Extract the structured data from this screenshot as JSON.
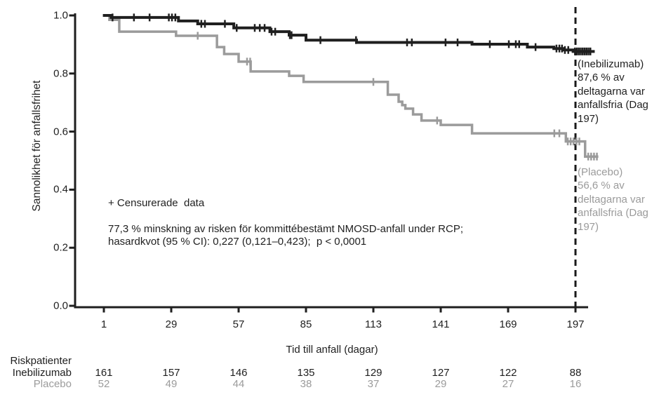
{
  "chart_data": {
    "type": "line",
    "subtype": "kaplan-meier-step",
    "title": "",
    "xlabel": "Tid till anfall (dagar)",
    "ylabel": "Sannolikhet för anfallsfrihet",
    "x_ticks": [
      "1",
      "29",
      "57",
      "85",
      "113",
      "141",
      "169",
      "197"
    ],
    "x_tick_days": [
      1,
      29,
      57,
      85,
      113,
      141,
      169,
      197
    ],
    "y_ticks": [
      "1.0",
      "0.8",
      "0.6",
      "0.4",
      "0.2",
      "0.0"
    ],
    "y_tick_values": [
      1.0,
      0.8,
      0.6,
      0.4,
      0.2,
      0.0
    ],
    "ylim": [
      0.0,
      1.0
    ],
    "xlim_days": [
      1,
      207
    ],
    "grid": false,
    "legend_position": "right-annotations",
    "reference_line": {
      "day": 197,
      "style": "dashed",
      "color": "#1a1a1a"
    },
    "censor_note": "+ Censurerade  data",
    "stats_note_line1": "77,3 % minskning av risken för kommittébestämt NMOSD-anfall under RCP;",
    "stats_note_line2": "hasardkvot (95 % CI): 0,227 (0,121–0,423);  p < 0,0001",
    "series": [
      {
        "name": "Inebilizumab",
        "color": "#1f1f1f",
        "stroke_width": 4,
        "survival_at_day_197": "87,6 %",
        "annotation": "(Inebilizumab)\n87,6 % av\ndeltagarna var\nanfallsfria (Dag\n197)",
        "steps": [
          [
            0.6,
            1.0
          ],
          [
            4,
            0.993
          ],
          [
            32,
            0.981
          ],
          [
            40,
            0.971
          ],
          [
            55,
            0.957
          ],
          [
            70,
            0.944
          ],
          [
            78,
            0.932
          ],
          [
            85,
            0.915
          ],
          [
            106,
            0.907
          ],
          [
            154,
            0.901
          ],
          [
            177,
            0.891
          ],
          [
            188,
            0.886
          ],
          [
            192,
            0.881
          ],
          [
            196,
            0.876
          ]
        ],
        "end_day": 205,
        "censor_days": [
          4.6,
          13.5,
          20,
          28,
          29.3,
          30.7,
          41.5,
          43,
          51.3,
          56.2,
          63.7,
          65.8,
          67.8,
          70.7,
          72.2,
          78.3,
          79,
          91,
          105.8,
          127,
          129,
          143,
          148,
          161.4,
          169.3,
          172.2,
          173.6,
          180.4,
          189.1,
          190.3,
          191.4,
          192.6,
          194,
          196.8,
          197.6,
          198.4,
          199.2,
          200,
          200.8,
          201.6,
          202.4,
          203.2
        ]
      },
      {
        "name": "Placebo",
        "color": "#9b9b9b",
        "stroke_width": 3.5,
        "survival_at_day_197": "56,6 %",
        "annotation": "(Placebo)\n56,6 % av\ndeltagarna var\nanfallsfria (Dag\n197)",
        "steps": [
          [
            0.6,
            1.0
          ],
          [
            3.3,
            0.985
          ],
          [
            7.4,
            0.944
          ],
          [
            31,
            0.93
          ],
          [
            48,
            0.891
          ],
          [
            51,
            0.867
          ],
          [
            57,
            0.841
          ],
          [
            62,
            0.807
          ],
          [
            78,
            0.792
          ],
          [
            84,
            0.771
          ],
          [
            119,
            0.727
          ],
          [
            123.5,
            0.703
          ],
          [
            125,
            0.691
          ],
          [
            126.3,
            0.679
          ],
          [
            129.5,
            0.659
          ],
          [
            133,
            0.638
          ],
          [
            141,
            0.623
          ],
          [
            154,
            0.594
          ],
          [
            193,
            0.566
          ],
          [
            201,
            0.514
          ]
        ],
        "end_day": 206.5,
        "censor_days": [
          40,
          60.5,
          61.8,
          113,
          139.5,
          188.2,
          190.3,
          193.8,
          195,
          196.2,
          197.4,
          198.6,
          202.3,
          203.5,
          204.7,
          205.9
        ]
      }
    ]
  },
  "risk_table": {
    "title": "Riskpatienter",
    "rows": [
      {
        "label": "Inebilizumab",
        "color": "#1f1f1f",
        "values": [
          "161",
          "157",
          "146",
          "135",
          "129",
          "127",
          "122",
          "88"
        ]
      },
      {
        "label": "Placebo",
        "color": "#9b9b9b",
        "values": [
          "52",
          "49",
          "44",
          "38",
          "37",
          "29",
          "27",
          "16"
        ]
      }
    ]
  }
}
